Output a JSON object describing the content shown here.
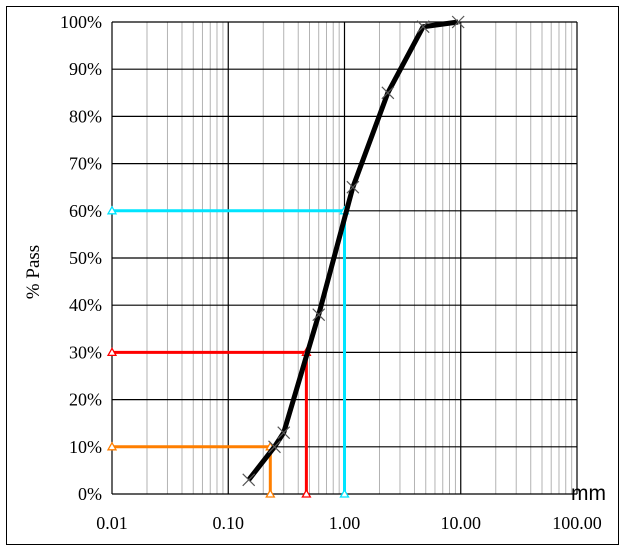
{
  "chart_data": {
    "type": "line",
    "ylabel": "% Pass",
    "x_unit": "mm",
    "x_scale": "log",
    "xlim": [
      0.01,
      100
    ],
    "ylim": [
      0,
      100
    ],
    "x_tick_labels": [
      "0.01",
      "0.10",
      "1.00",
      "10.00",
      "100.00"
    ],
    "y_tick_labels": [
      "0%",
      "10%",
      "20%",
      "30%",
      "40%",
      "50%",
      "60%",
      "70%",
      "80%",
      "90%",
      "100%"
    ],
    "grid": true,
    "series": [
      {
        "color": "#000000",
        "x": [
          0.15,
          0.25,
          0.3,
          0.6,
          1.18,
          2.36,
          4.75,
          9.5
        ],
        "y": [
          3,
          10,
          13,
          38,
          65,
          85,
          99,
          100
        ]
      }
    ],
    "reference_lines": [
      {
        "color": "#00e5ff",
        "x": 1.0,
        "y": 60
      },
      {
        "color": "#ff0000",
        "x": 0.47,
        "y": 30
      },
      {
        "color": "#ff7f00",
        "x": 0.23,
        "y": 10
      }
    ]
  }
}
